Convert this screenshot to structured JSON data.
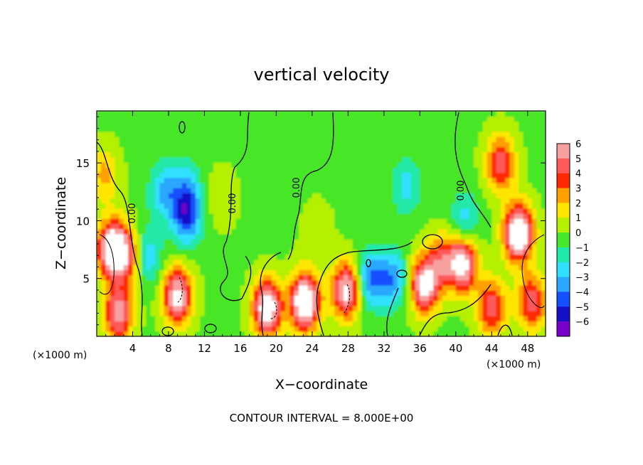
{
  "chart_data": {
    "type": "heatmap",
    "title": "vertical velocity",
    "xlabel": "X−coordinate",
    "ylabel": "Z−coordinate",
    "x_unit_left": "(×1000 m)",
    "x_unit_right": "(×1000 m)",
    "footer": "CONTOUR INTERVAL = 8.000E+00",
    "xlim": [
      0,
      50
    ],
    "ylim": [
      0,
      19.5
    ],
    "x_ticks": [
      4,
      8,
      12,
      16,
      20,
      24,
      28,
      32,
      36,
      40,
      44,
      48
    ],
    "x_tick_labels": [
      "4",
      "8",
      "12",
      "16",
      "20",
      "24",
      "28",
      "32",
      "36",
      "40",
      "44",
      "48"
    ],
    "y_ticks": [
      5,
      10,
      15
    ],
    "y_tick_labels": [
      "5",
      "10",
      "15"
    ],
    "colorbar": {
      "levels": [
        6,
        5,
        4,
        3,
        2,
        1,
        0,
        -1,
        -2,
        -3,
        -4,
        -5,
        -6
      ],
      "labels": [
        "6",
        "5",
        "4",
        "3",
        "2",
        "1",
        "0",
        "−1",
        "−2",
        "−3",
        "−4",
        "−5",
        "−6"
      ],
      "colors": [
        "#f7a0a0",
        "#ff5a5a",
        "#ff2a00",
        "#ffa000",
        "#ffe600",
        "#b4f000",
        "#46e628",
        "#20e8a8",
        "#30e0ff",
        "#2aa8ff",
        "#1450ff",
        "#1410c8",
        "#7800c8"
      ]
    },
    "contour_labels": [
      "0.00",
      "0.00",
      "0.00",
      "0.00"
    ],
    "background_value": 0.3,
    "features": [
      {
        "x": 1.8,
        "z": 7.5,
        "value": 9
      },
      {
        "x": 2.4,
        "z": 2.0,
        "value": 6
      },
      {
        "x": 0.8,
        "z": 14.0,
        "value": 2.5
      },
      {
        "x": 3.6,
        "z": 7.0,
        "value": 4
      },
      {
        "x": 10.0,
        "z": 10.5,
        "value": -5
      },
      {
        "x": 7.5,
        "z": 12.5,
        "value": -3
      },
      {
        "x": 5.5,
        "z": 7.0,
        "value": -3
      },
      {
        "x": 9.0,
        "z": 3.5,
        "value": 7
      },
      {
        "x": 10.0,
        "z": 13.0,
        "value": -2
      },
      {
        "x": 19.0,
        "z": 2.5,
        "value": 8
      },
      {
        "x": 23.2,
        "z": 3.0,
        "value": 9
      },
      {
        "x": 27.8,
        "z": 4.0,
        "value": 7
      },
      {
        "x": 30.5,
        "z": 5.0,
        "value": -4
      },
      {
        "x": 33.0,
        "z": 5.0,
        "value": -3.5
      },
      {
        "x": 36.5,
        "z": 4.5,
        "value": 7
      },
      {
        "x": 38.5,
        "z": 6.5,
        "value": 4
      },
      {
        "x": 40.8,
        "z": 6.3,
        "value": 7
      },
      {
        "x": 34.5,
        "z": 13.0,
        "value": -2.2
      },
      {
        "x": 41.0,
        "z": 10.0,
        "value": -2.5
      },
      {
        "x": 47.0,
        "z": 9.0,
        "value": 9
      },
      {
        "x": 45.0,
        "z": 15.0,
        "value": 5
      },
      {
        "x": 44.0,
        "z": 2.5,
        "value": 5
      },
      {
        "x": 48.5,
        "z": 3.0,
        "value": 5
      },
      {
        "x": 14.0,
        "z": 12.0,
        "value": 1.2
      },
      {
        "x": 24.5,
        "z": 9.0,
        "value": 1.2
      }
    ]
  }
}
